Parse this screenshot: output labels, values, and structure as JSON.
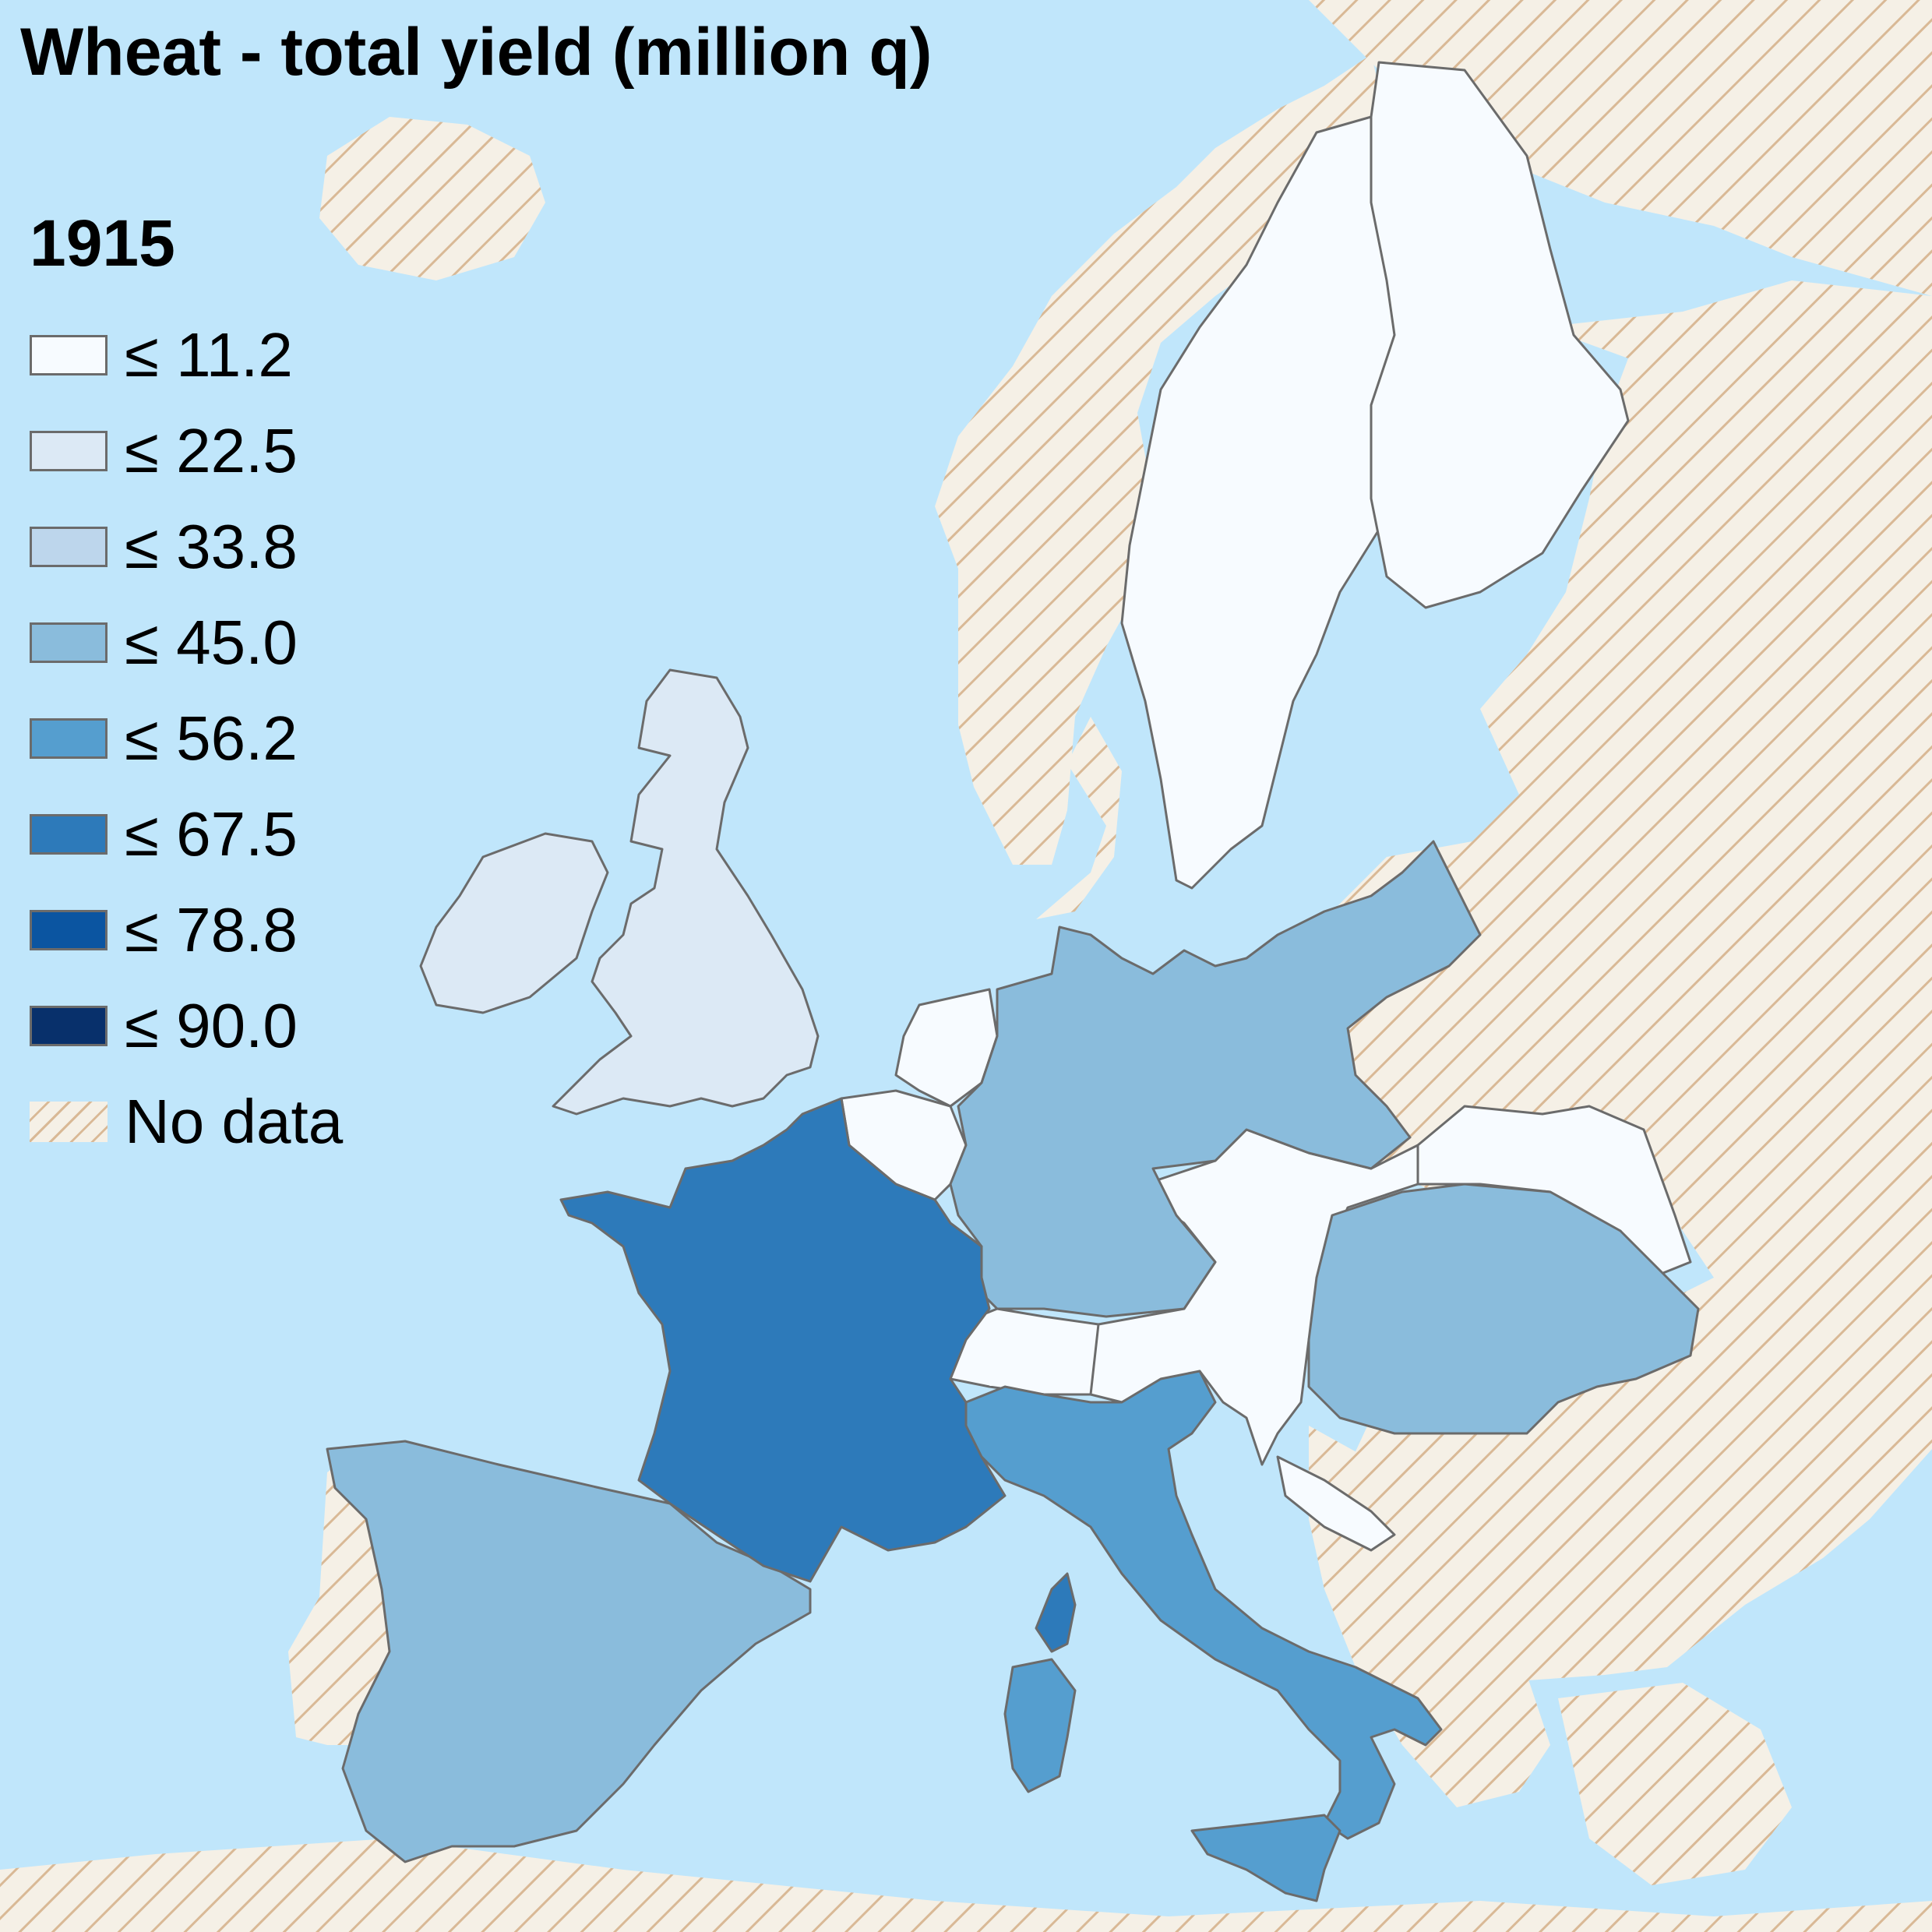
{
  "title": "Wheat - total yield (million q)",
  "legend": {
    "year": "1915",
    "classes": [
      {
        "label": "≤ 11.2",
        "color": "#f7fbff"
      },
      {
        "label": "≤ 22.5",
        "color": "#dce9f5"
      },
      {
        "label": "≤ 33.8",
        "color": "#bdd6ec"
      },
      {
        "label": "≤ 45.0",
        "color": "#8abcdc"
      },
      {
        "label": "≤ 56.2",
        "color": "#559ecf"
      },
      {
        "label": "≤ 67.5",
        "color": "#2d7aba"
      },
      {
        "label": "≤ 78.8",
        "color": "#0b55a1"
      },
      {
        "label": "≤ 90.0",
        "color": "#08306b"
      }
    ],
    "no_data": {
      "label": "No data",
      "color": "#f5f0e6",
      "hatch_color": "#d9b996"
    }
  },
  "colors": {
    "sea": "#c0e6fb",
    "border": "#6b6b6b"
  },
  "regions": [
    {
      "name": "Sweden",
      "class": 0
    },
    {
      "name": "Netherlands",
      "class": 0
    },
    {
      "name": "Belgium",
      "class": 0
    },
    {
      "name": "Switzerland",
      "class": 0
    },
    {
      "name": "Austria",
      "class": 0
    },
    {
      "name": "Galicia-Bukovina",
      "class": 0
    },
    {
      "name": "Dalmatia",
      "class": 0
    },
    {
      "name": "United Kingdom",
      "class": 1
    },
    {
      "name": "Ireland",
      "class": 1
    },
    {
      "name": "Germany",
      "class": 3
    },
    {
      "name": "Hungary",
      "class": 3
    },
    {
      "name": "Spain",
      "class": 3
    },
    {
      "name": "Italy",
      "class": 4
    },
    {
      "name": "Sardinia",
      "class": 4
    },
    {
      "name": "Sicily",
      "class": 4
    },
    {
      "name": "France",
      "class": 5
    },
    {
      "name": "Corsica",
      "class": 5
    }
  ]
}
